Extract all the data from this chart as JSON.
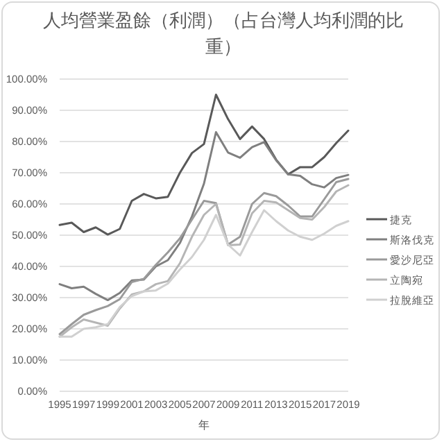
{
  "chart_data": {
    "type": "line",
    "title": "人均營業盈餘（利潤）（占台灣人均利潤的比重）",
    "xlabel": "年",
    "x": [
      1995,
      1996,
      1997,
      1998,
      1999,
      2000,
      2001,
      2002,
      2003,
      2004,
      2005,
      2006,
      2007,
      2008,
      2009,
      2010,
      2011,
      2012,
      2013,
      2014,
      2015,
      2016,
      2017,
      2018,
      2019
    ],
    "series": [
      {
        "name": "捷克",
        "color": "#595959",
        "values": [
          53.3,
          54,
          51,
          52.5,
          50.2,
          52,
          61,
          63.2,
          61.8,
          62.3,
          70,
          76.3,
          79.2,
          95,
          87.2,
          80.8,
          84.8,
          80.8,
          74.2,
          69.5,
          71.8,
          71.8,
          75,
          79.5,
          83.5
        ]
      },
      {
        "name": "斯洛伐克",
        "color": "#7f7f7f",
        "values": [
          34.3,
          33,
          33.5,
          31.2,
          29.2,
          31.5,
          35.5,
          35.8,
          40,
          42,
          47.5,
          56,
          66.5,
          83,
          76.5,
          74.8,
          78.2,
          79.8,
          74,
          69.5,
          69,
          66.3,
          65.3,
          68.3,
          69.3
        ]
      },
      {
        "name": "愛沙尼亞",
        "color": "#9a9a9a",
        "values": [
          18.3,
          21.5,
          24.5,
          26,
          27.3,
          29.5,
          35,
          36,
          40.5,
          44.5,
          49,
          55,
          61,
          60.3,
          47,
          49.5,
          60,
          63.5,
          62.5,
          59.5,
          56,
          56,
          61.5,
          67,
          68
        ]
      },
      {
        "name": "立陶宛",
        "color": "#b5b5b5",
        "values": [
          17.5,
          20.5,
          23,
          22,
          21,
          26.5,
          31,
          32,
          34.3,
          35.3,
          41,
          49.5,
          56.5,
          60,
          46.8,
          47,
          57,
          61,
          60.5,
          58,
          55.5,
          55,
          59,
          64,
          66
        ]
      },
      {
        "name": "拉脫維亞",
        "color": "#d0d0d0",
        "values": [
          17.5,
          17.5,
          20,
          20.5,
          21.5,
          27,
          30.5,
          32,
          32.3,
          34.5,
          39,
          43,
          48.5,
          56.5,
          47,
          43.5,
          51,
          58,
          54.5,
          51.5,
          49.5,
          48.5,
          50.5,
          53,
          54.5
        ]
      }
    ],
    "xlim": [
      1995,
      2019
    ],
    "xticks": [
      1995,
      1997,
      1999,
      2001,
      2003,
      2005,
      2007,
      2009,
      2011,
      2013,
      2015,
      2017,
      2019
    ],
    "ylim": [
      0,
      100
    ],
    "yticks": [
      {
        "value": 0,
        "label": "0.00%"
      },
      {
        "value": 10,
        "label": "10.00%"
      },
      {
        "value": 20,
        "label": "20.00%"
      },
      {
        "value": 30,
        "label": "30.00%"
      },
      {
        "value": 40,
        "label": "40.00%"
      },
      {
        "value": 50,
        "label": "50.00%"
      },
      {
        "value": 60,
        "label": "60.00%"
      },
      {
        "value": 70,
        "label": "70.00%"
      },
      {
        "value": 80,
        "label": "80.00%"
      },
      {
        "value": 90,
        "label": "90.00%"
      },
      {
        "value": 100,
        "label": "100.00%"
      }
    ],
    "grid": "y",
    "legend": "right"
  }
}
